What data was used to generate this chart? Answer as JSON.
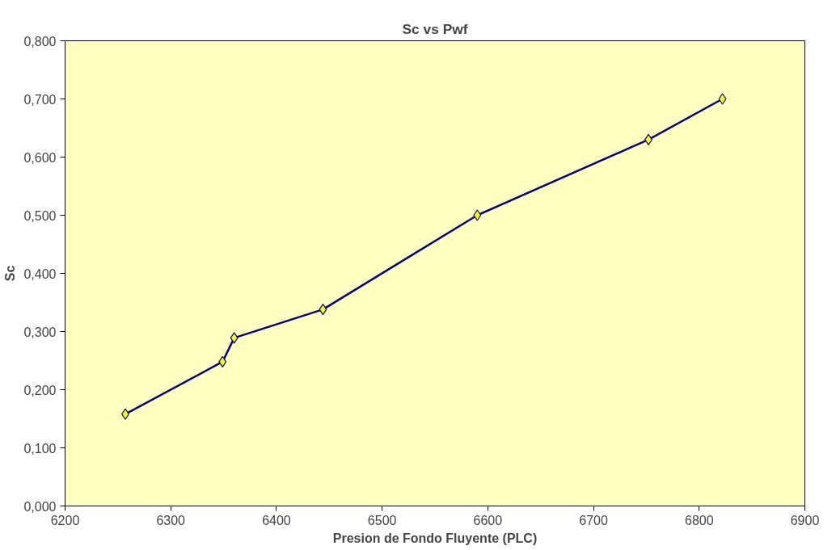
{
  "chart_data": {
    "type": "line",
    "title": "Sc vs Pwf",
    "xlabel": "Presion de Fondo Fluyente (PLC)",
    "ylabel": "Sc",
    "x": [
      6257,
      6349,
      6360,
      6444,
      6590,
      6752,
      6822
    ],
    "series": [
      {
        "color": "#000080",
        "values": [
          0.158,
          0.248,
          0.289,
          0.338,
          0.5,
          0.63,
          0.7
        ]
      }
    ],
    "marker": "diamond",
    "line_style": "solid",
    "grid": false,
    "xlim": [
      6200,
      6900
    ],
    "xticks": [
      6200,
      6300,
      6400,
      6500,
      6600,
      6700,
      6800,
      6900
    ],
    "ylim": [
      0,
      0.8
    ],
    "yticks": [
      {
        "value": 0,
        "label": "0,000"
      },
      {
        "value": 0.1,
        "label": "0,100"
      },
      {
        "value": 0.2,
        "label": "0,200"
      },
      {
        "value": 0.3,
        "label": "0,300"
      },
      {
        "value": 0.4,
        "label": "0,400"
      },
      {
        "value": 0.5,
        "label": "0,500"
      },
      {
        "value": 0.6,
        "label": "0,600"
      },
      {
        "value": 0.7,
        "label": "0,700"
      },
      {
        "value": 0.8,
        "label": "0,800"
      }
    ]
  }
}
